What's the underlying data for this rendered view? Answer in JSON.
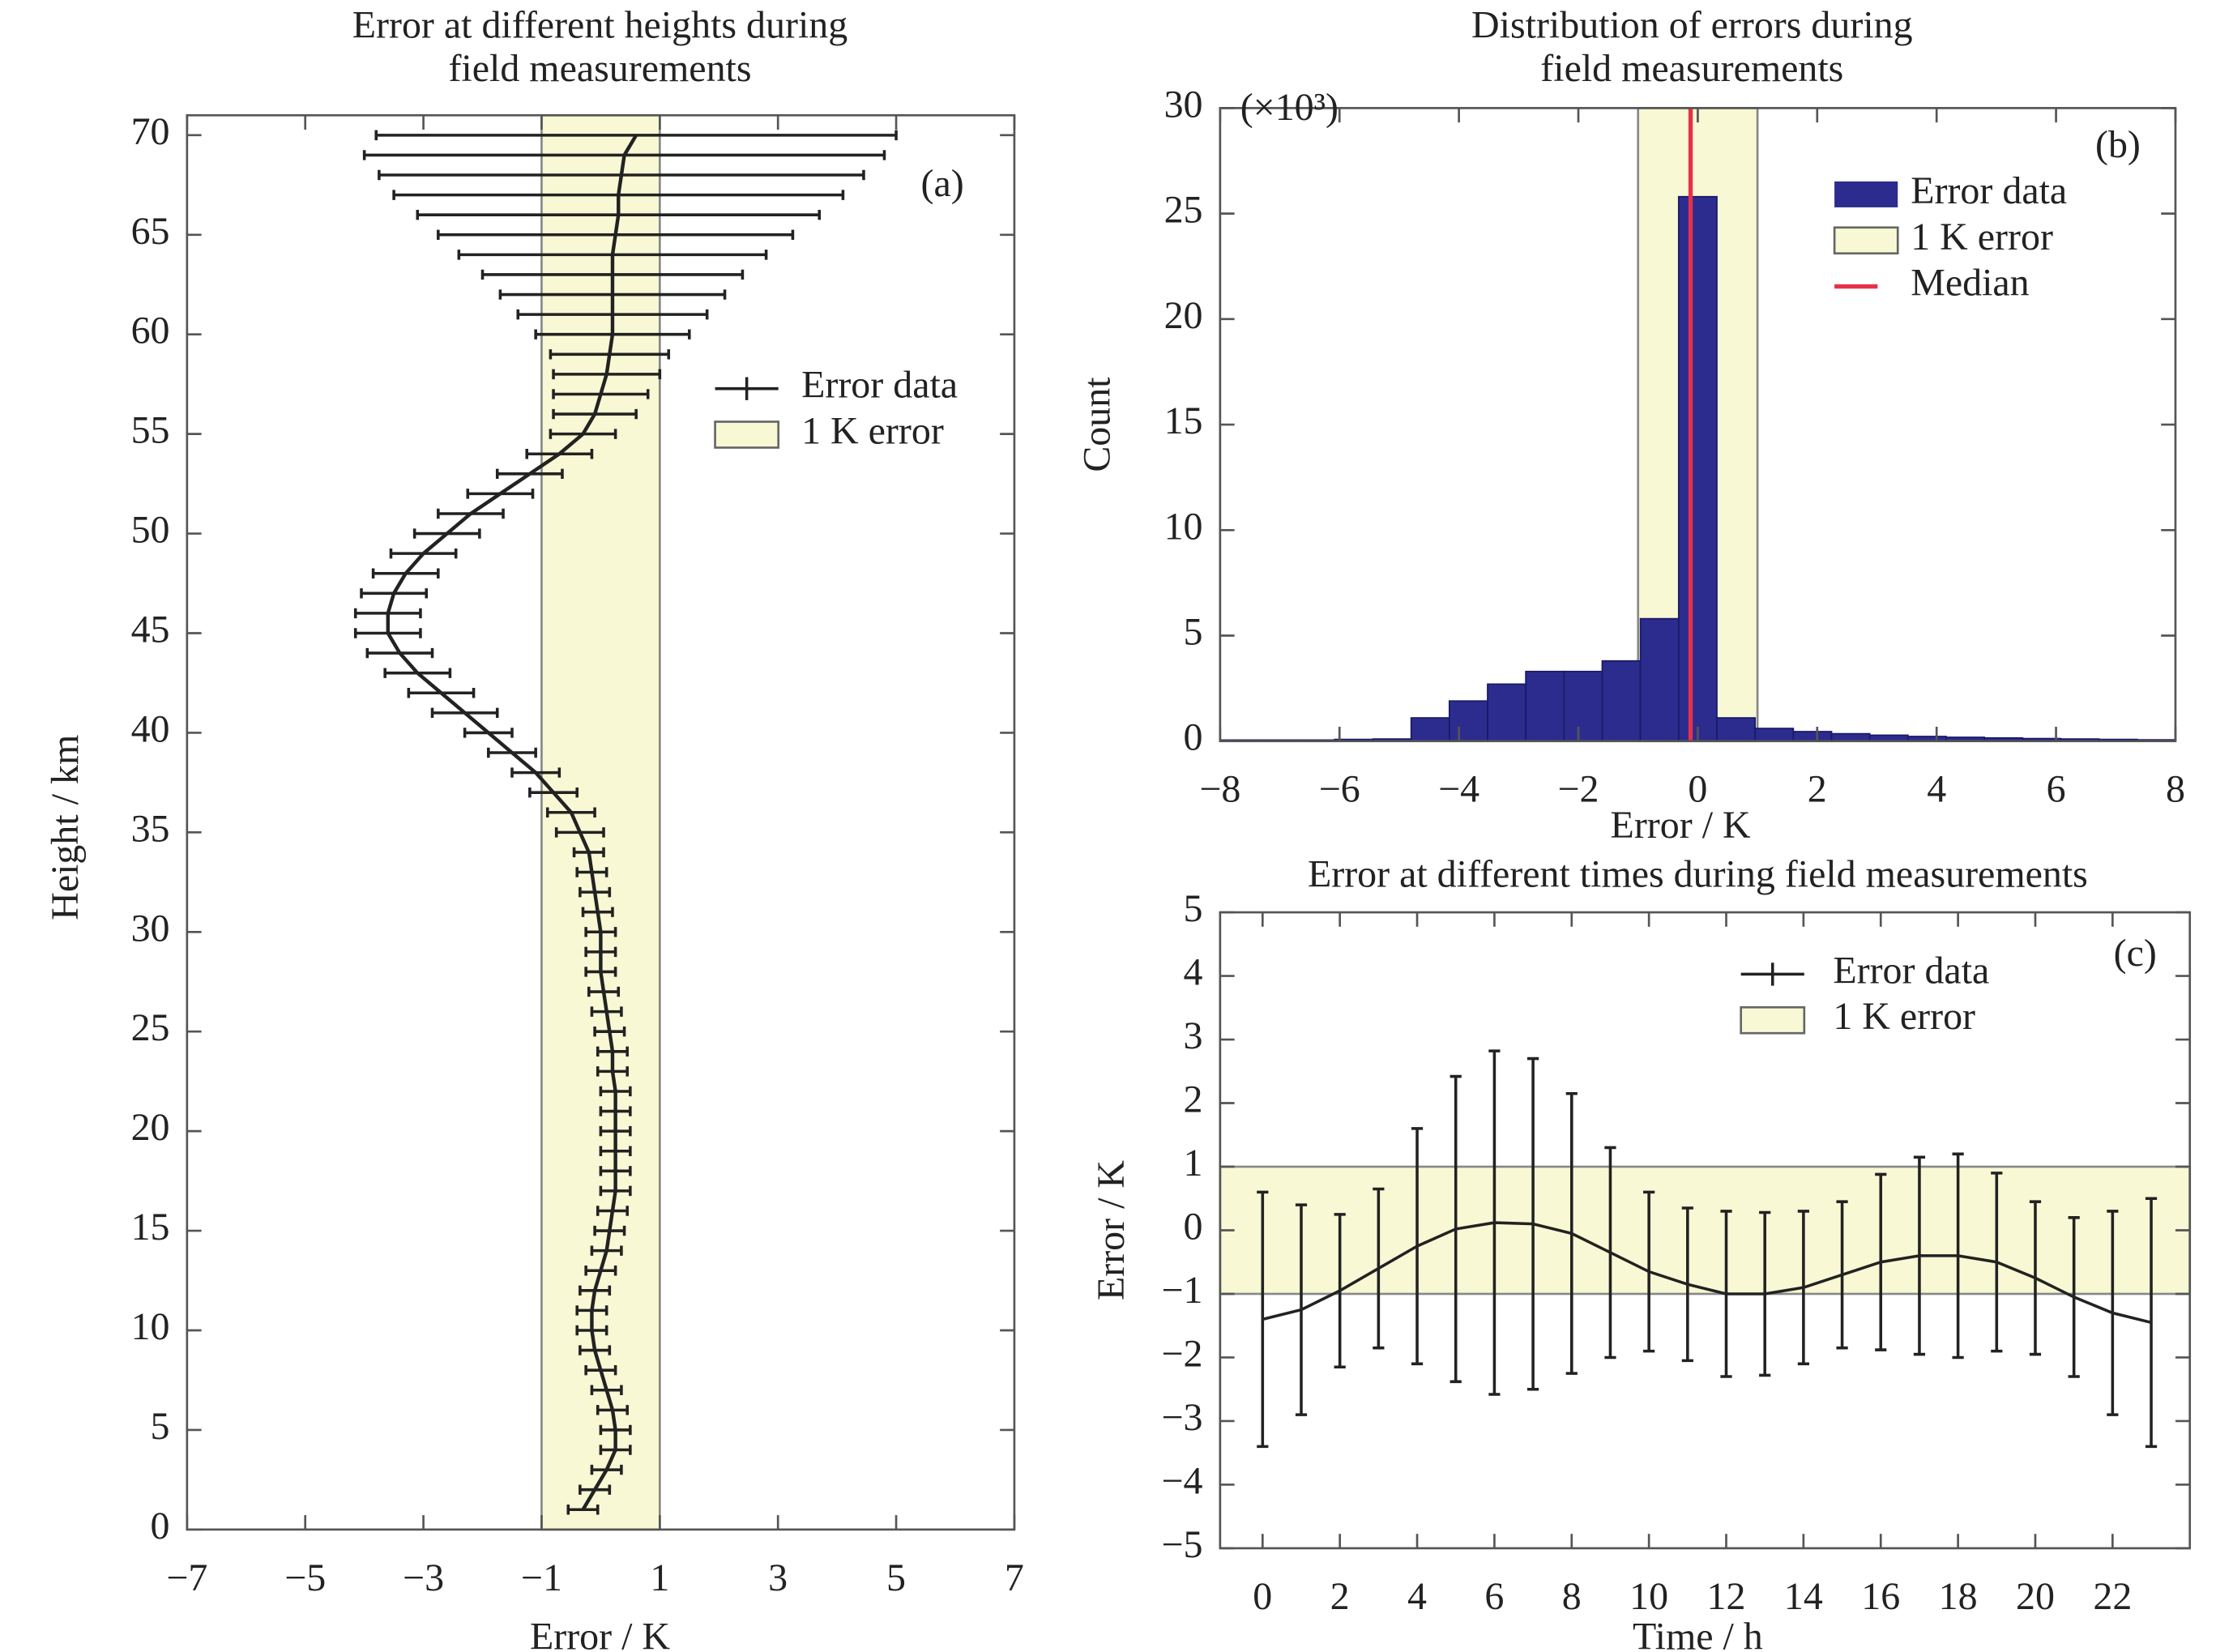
{
  "chart_data": [
    {
      "type": "errorbar",
      "orientation": "horizontal",
      "title": [
        "Error at different heights during",
        "field measurements"
      ],
      "panel_label": "(a)",
      "x_label": "Error / K",
      "y_label": "Height / km",
      "xlim": [
        -7,
        7
      ],
      "ylim": [
        0,
        71
      ],
      "xticks": [
        {
          "value": -7,
          "label": "−7"
        },
        {
          "value": -5,
          "label": "−5"
        },
        {
          "value": -3,
          "label": "−3"
        },
        {
          "value": -1,
          "label": "−1"
        },
        1,
        3,
        5,
        7
      ],
      "yticks": [
        0,
        5,
        10,
        15,
        20,
        25,
        30,
        35,
        40,
        45,
        50,
        55,
        60,
        65,
        70
      ],
      "band": {
        "name": "1 K error",
        "range": [
          -1,
          1
        ],
        "color": "#f8f8d4"
      },
      "y": [
        1,
        2,
        3,
        4,
        5,
        6,
        7,
        8,
        9,
        10,
        11,
        12,
        13,
        14,
        15,
        16,
        17,
        18,
        19,
        20,
        21,
        22,
        23,
        24,
        25,
        26,
        27,
        28,
        29,
        30,
        31,
        32,
        33,
        34,
        35,
        36,
        37,
        38,
        39,
        40,
        41,
        42,
        43,
        44,
        45,
        46,
        47,
        48,
        49,
        50,
        51,
        52,
        53,
        54,
        55,
        56,
        57,
        58,
        59,
        60,
        61,
        62,
        63,
        64,
        65,
        66,
        67,
        68,
        69,
        70
      ],
      "series": [
        {
          "name": "Error data",
          "color": "#222222",
          "values": [
            -0.3,
            -0.1,
            0.1,
            0.25,
            0.25,
            0.2,
            0.1,
            0,
            -0.1,
            -0.15,
            -0.15,
            -0.1,
            0,
            0.1,
            0.15,
            0.2,
            0.25,
            0.25,
            0.25,
            0.25,
            0.25,
            0.25,
            0.2,
            0.2,
            0.15,
            0.1,
            0.05,
            0,
            0,
            0,
            -0.05,
            -0.1,
            -0.15,
            -0.2,
            -0.35,
            -0.5,
            -0.8,
            -1.1,
            -1.5,
            -1.9,
            -2.3,
            -2.7,
            -3.1,
            -3.4,
            -3.6,
            -3.6,
            -3.5,
            -3.3,
            -3,
            -2.6,
            -2.2,
            -1.7,
            -1.2,
            -0.7,
            -0.3,
            -0.1,
            0,
            0.1,
            0.15,
            0.2,
            0.2,
            0.2,
            0.2,
            0.2,
            0.25,
            0.3,
            0.3,
            0.35,
            0.4,
            0.6
          ],
          "errors": [
            0.25,
            0.25,
            0.25,
            0.25,
            0.25,
            0.25,
            0.25,
            0.25,
            0.25,
            0.25,
            0.25,
            0.25,
            0.25,
            0.25,
            0.25,
            0.25,
            0.25,
            0.25,
            0.25,
            0.25,
            0.25,
            0.25,
            0.25,
            0.25,
            0.25,
            0.25,
            0.25,
            0.25,
            0.25,
            0.25,
            0.25,
            0.25,
            0.25,
            0.25,
            0.4,
            0.4,
            0.4,
            0.4,
            0.4,
            0.4,
            0.55,
            0.55,
            0.55,
            0.55,
            0.55,
            0.55,
            0.55,
            0.55,
            0.55,
            0.55,
            0.55,
            0.55,
            0.55,
            0.55,
            0.55,
            0.7,
            0.8,
            0.9,
            1.0,
            1.3,
            1.6,
            1.9,
            2.2,
            2.6,
            3.0,
            3.4,
            3.8,
            4.1,
            4.4,
            4.4
          ]
        }
      ]
    },
    {
      "type": "histogram",
      "title": [
        "Distribution of errors during",
        "field measurements"
      ],
      "panel_label": "(b)",
      "annotation": "(×10³)",
      "x_label": "Error / K",
      "y_label": "Count",
      "xlim": [
        -8,
        8
      ],
      "ylim": [
        0,
        30
      ],
      "xticks": [
        {
          "value": -8,
          "label": "−8"
        },
        {
          "value": -6,
          "label": "−6"
        },
        {
          "value": -4,
          "label": "−4"
        },
        {
          "value": -2,
          "label": "−2"
        },
        0,
        2,
        4,
        6,
        8
      ],
      "yticks": [
        0,
        5,
        10,
        15,
        20,
        25,
        30
      ],
      "band": {
        "name": "1 K error",
        "range": [
          -1,
          1
        ],
        "color": "#f8f8d4"
      },
      "bins": [
        -8,
        -7.36,
        -6.72,
        -6.08,
        -5.44,
        -4.8,
        -4.16,
        -3.52,
        -2.88,
        -2.24,
        -1.6,
        -0.96,
        -0.32,
        0.32,
        0.96,
        1.6,
        2.24,
        2.88,
        3.52,
        4.16,
        4.8,
        5.44,
        6.08,
        6.72,
        7.36,
        8
      ],
      "series": [
        {
          "name": "Error data",
          "color": "#2c2c8e",
          "values": [
            0.05,
            0.05,
            0.05,
            0.08,
            0.1,
            1.1,
            1.9,
            2.7,
            3.3,
            3.3,
            3.8,
            5.8,
            25.8,
            1.1,
            0.6,
            0.45,
            0.35,
            0.28,
            0.22,
            0.18,
            0.15,
            0.12,
            0.1,
            0.08,
            0.06
          ]
        }
      ],
      "median": {
        "name": "Median",
        "value": -0.12,
        "color": "#e8304a"
      }
    },
    {
      "type": "errorbar",
      "orientation": "vertical",
      "title": [
        "Error at different times during field measurements"
      ],
      "panel_label": "(c)",
      "x_label": "Time / h",
      "y_label": "Error / K",
      "xlim": [
        -1.1,
        24
      ],
      "ylim": [
        -5,
        5
      ],
      "xticks": [
        0,
        2,
        4,
        6,
        8,
        10,
        12,
        14,
        16,
        18,
        20,
        22
      ],
      "yticks": [
        {
          "value": -5,
          "label": "−5"
        },
        {
          "value": -4,
          "label": "−4"
        },
        {
          "value": -3,
          "label": "−3"
        },
        {
          "value": -2,
          "label": "−2"
        },
        {
          "value": -1,
          "label": "−1"
        },
        0,
        1,
        2,
        3,
        4,
        5
      ],
      "band": {
        "name": "1 K error",
        "range": [
          -1,
          1
        ],
        "color": "#f8f8d4"
      },
      "x": [
        0,
        1,
        2,
        3,
        4,
        5,
        6,
        7,
        8,
        9,
        10,
        11,
        12,
        13,
        14,
        15,
        16,
        17,
        18,
        19,
        20,
        21,
        22,
        23
      ],
      "series": [
        {
          "name": "Error data",
          "color": "#222222",
          "values": [
            -1.4,
            -1.25,
            -0.95,
            -0.6,
            -0.25,
            0.02,
            0.12,
            0.1,
            -0.05,
            -0.35,
            -0.65,
            -0.85,
            -1.0,
            -1.0,
            -0.9,
            -0.7,
            -0.5,
            -0.4,
            -0.4,
            -0.5,
            -0.75,
            -1.05,
            -1.3,
            -1.45
          ],
          "errors": [
            2.0,
            1.65,
            1.2,
            1.25,
            1.85,
            2.4,
            2.7,
            2.6,
            2.2,
            1.65,
            1.25,
            1.2,
            1.3,
            1.28,
            1.2,
            1.15,
            1.38,
            1.55,
            1.6,
            1.4,
            1.2,
            1.25,
            1.6,
            1.95
          ]
        }
      ]
    }
  ]
}
